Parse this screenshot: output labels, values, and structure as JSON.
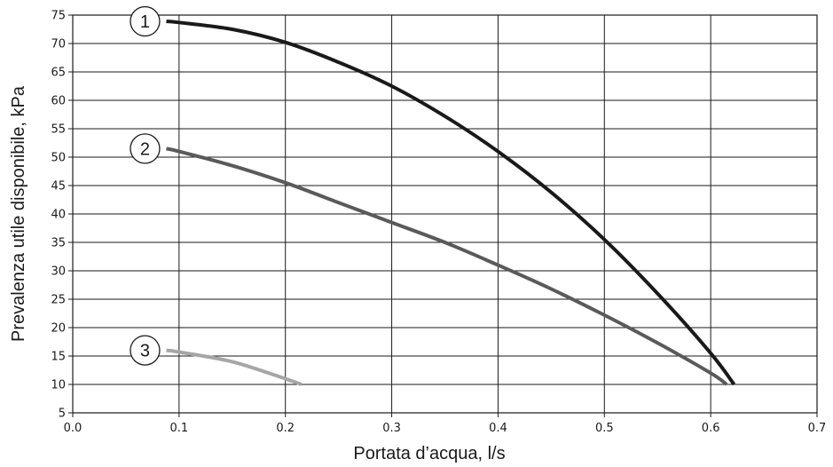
{
  "chart_data": {
    "type": "line",
    "xlabel": "Portata d’acqua, l/s",
    "ylabel": "Prevalenza utile disponibile, kPa",
    "xlim": [
      0.0,
      0.7
    ],
    "ylim": [
      5,
      75
    ],
    "xticks": [
      "0.0",
      "0.1",
      "0.2",
      "0.3",
      "0.4",
      "0.5",
      "0.6",
      "0.7"
    ],
    "yticks": [
      "5",
      "10",
      "15",
      "20",
      "25",
      "30",
      "35",
      "40",
      "45",
      "50",
      "55",
      "60",
      "65",
      "70",
      "75"
    ],
    "grid": true,
    "series": [
      {
        "name": "1",
        "color": "#1a1a1a",
        "points": [
          [
            0.088,
            73.9
          ],
          [
            0.1,
            73.7
          ],
          [
            0.15,
            72.5
          ],
          [
            0.2,
            70.2
          ],
          [
            0.25,
            66.7
          ],
          [
            0.3,
            62.5
          ],
          [
            0.35,
            57.2
          ],
          [
            0.4,
            51.0
          ],
          [
            0.45,
            43.8
          ],
          [
            0.5,
            35.5
          ],
          [
            0.55,
            26.0
          ],
          [
            0.6,
            15.5
          ],
          [
            0.622,
            10.0
          ]
        ]
      },
      {
        "name": "2",
        "color": "#5a5a5a",
        "points": [
          [
            0.088,
            51.5
          ],
          [
            0.1,
            51.0
          ],
          [
            0.15,
            48.5
          ],
          [
            0.2,
            45.5
          ],
          [
            0.25,
            42.0
          ],
          [
            0.3,
            38.5
          ],
          [
            0.35,
            35.0
          ],
          [
            0.4,
            31.0
          ],
          [
            0.45,
            26.8
          ],
          [
            0.5,
            22.2
          ],
          [
            0.55,
            17.3
          ],
          [
            0.6,
            12.0
          ],
          [
            0.615,
            10.0
          ]
        ]
      },
      {
        "name": "3",
        "color": "#a6a6a6",
        "points": [
          [
            0.088,
            16.0
          ],
          [
            0.1,
            15.7
          ],
          [
            0.15,
            14.0
          ],
          [
            0.2,
            11.0
          ],
          [
            0.215,
            10.0
          ]
        ]
      }
    ]
  }
}
